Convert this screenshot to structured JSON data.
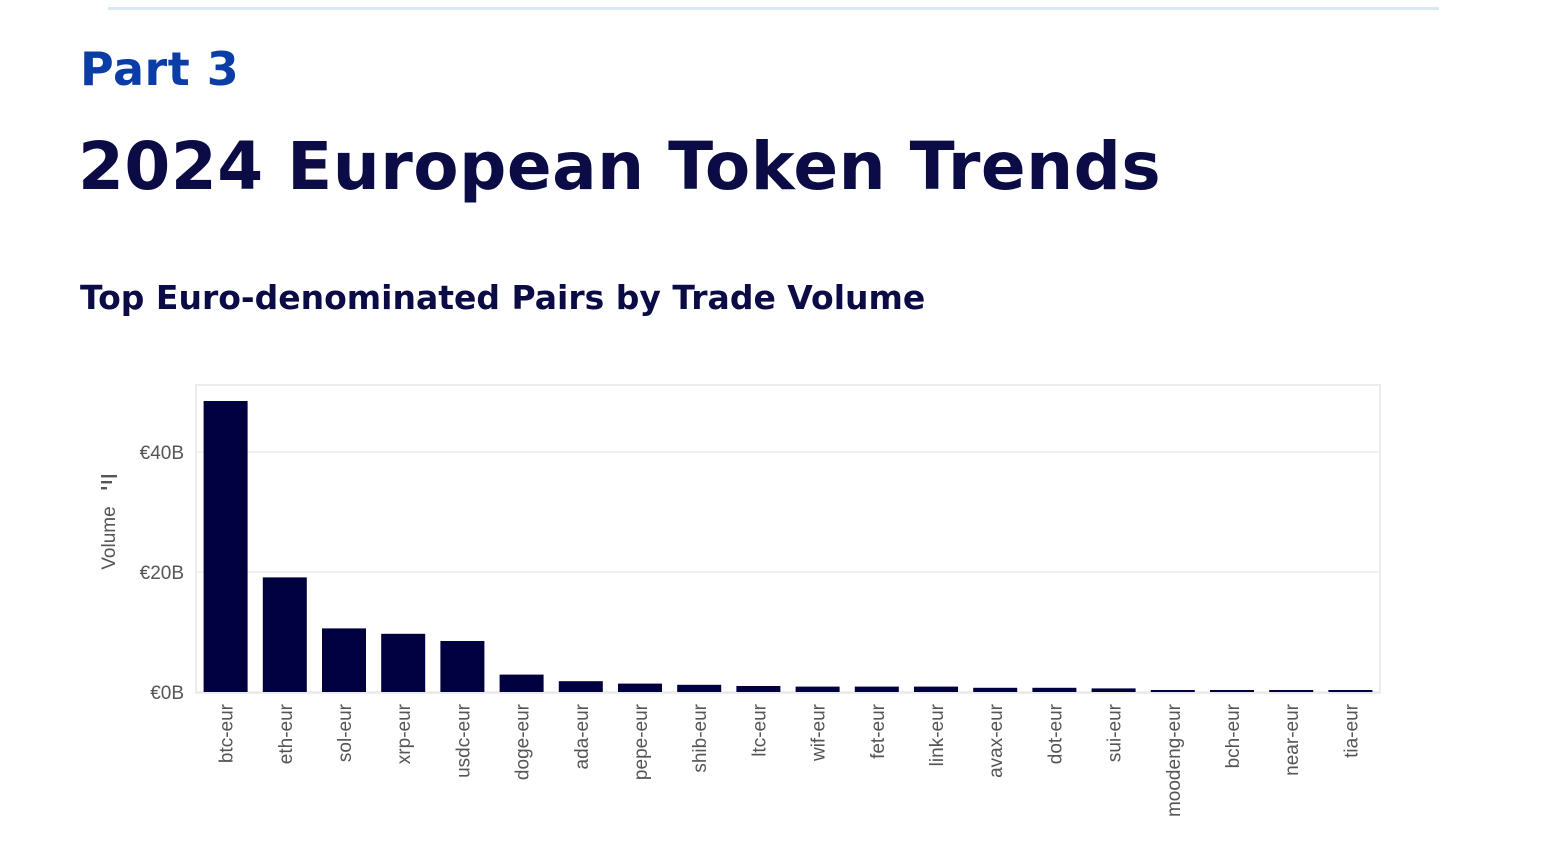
{
  "header": {
    "part": "Part 3",
    "title": "2024 European Token Trends"
  },
  "colors": {
    "bar": "#00003f",
    "accent": "#0a3ea6",
    "title": "#0b0b45"
  },
  "chart_data": {
    "type": "bar",
    "title": "Top Euro-denominated Pairs by Trade Volume",
    "xlabel": "",
    "ylabel": "Volume",
    "ylim": [
      0,
      51
    ],
    "y_ticks": [
      0,
      20,
      40
    ],
    "y_tick_labels": [
      "€0B",
      "€20B",
      "€40B"
    ],
    "unit": "€B",
    "categories": [
      "btc-eur",
      "eth-eur",
      "sol-eur",
      "xrp-eur",
      "usdc-eur",
      "doge-eur",
      "ada-eur",
      "pepe-eur",
      "shib-eur",
      "ltc-eur",
      "wif-eur",
      "fet-eur",
      "link-eur",
      "avax-eur",
      "dot-eur",
      "sui-eur",
      "moodeng-eur",
      "bch-eur",
      "near-eur",
      "tia-eur"
    ],
    "values": [
      48.5,
      19.1,
      10.6,
      9.7,
      8.5,
      2.9,
      1.8,
      1.4,
      1.2,
      1.0,
      0.9,
      0.9,
      0.9,
      0.7,
      0.7,
      0.6,
      0.3,
      0.3,
      0.3,
      0.3
    ]
  }
}
